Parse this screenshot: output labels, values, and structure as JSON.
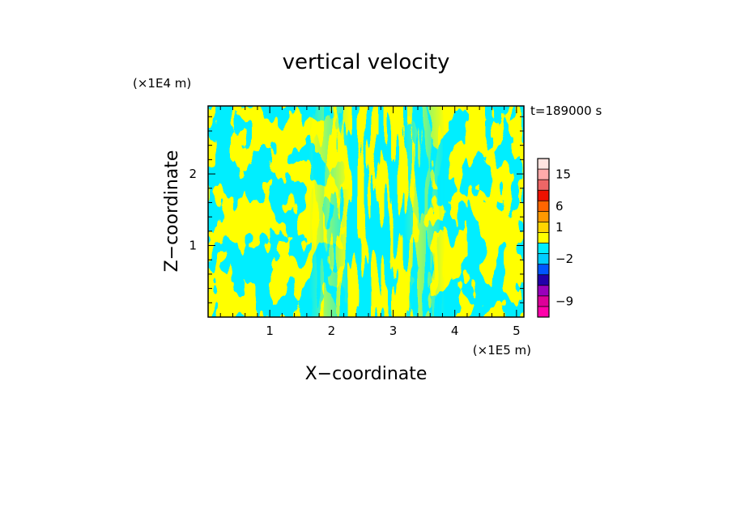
{
  "chart_data": {
    "type": "heatmap",
    "title": "vertical velocity",
    "xlabel": "X−coordinate",
    "ylabel": "Z−coordinate",
    "x_unit": "(×1E5 m)",
    "y_unit": "(×1E4 m)",
    "time_label": "t=189000 s",
    "xlim": [
      0,
      5.12
    ],
    "ylim": [
      0,
      2.95
    ],
    "x_ticks": [
      {
        "value": 1,
        "label": "1"
      },
      {
        "value": 2,
        "label": "2"
      },
      {
        "value": 3,
        "label": "3"
      },
      {
        "value": 4,
        "label": "4"
      },
      {
        "value": 5,
        "label": "5"
      }
    ],
    "y_ticks": [
      {
        "value": 1,
        "label": "1"
      },
      {
        "value": 2,
        "label": "2"
      }
    ],
    "field_colors": {
      "positive": "#ffff00",
      "negative": "#00eeff"
    },
    "colorbar": {
      "levels": [
        {
          "color": "#ff00aa"
        },
        {
          "color": "#dd0099"
        },
        {
          "color": "#9900bb"
        },
        {
          "color": "#2200aa"
        },
        {
          "color": "#0055ff"
        },
        {
          "color": "#00ccff"
        },
        {
          "color": "#00eeff"
        },
        {
          "color": "#ffff00"
        },
        {
          "color": "#ffd500"
        },
        {
          "color": "#ff9900"
        },
        {
          "color": "#ff6600"
        },
        {
          "color": "#ee1100"
        },
        {
          "color": "#ee6666"
        },
        {
          "color": "#ffaaaa"
        },
        {
          "color": "#ffe4e0"
        }
      ],
      "tick_labels": [
        {
          "level_index": 1,
          "label": "−9"
        },
        {
          "level_index": 5,
          "label": "−2"
        },
        {
          "level_index": 8,
          "label": "1"
        },
        {
          "level_index": 10,
          "label": "6"
        },
        {
          "level_index": 13,
          "label": "15"
        }
      ]
    }
  }
}
